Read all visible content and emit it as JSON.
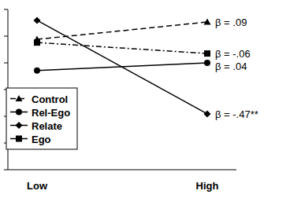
{
  "chart_data": {
    "type": "line",
    "categories": [
      "Low",
      "High"
    ],
    "series": [
      {
        "name": "Control",
        "color": "#000000",
        "marker": "triangle",
        "line_style": "dashed",
        "values": [
          4.88,
          5.53
        ]
      },
      {
        "name": "Rel-Ego",
        "color": "#000000",
        "marker": "circle",
        "line_style": "solid",
        "values": [
          3.71,
          4.0
        ]
      },
      {
        "name": "Relate",
        "color": "#000000",
        "marker": "diamond",
        "line_style": "solid",
        "values": [
          5.59,
          2.09
        ]
      },
      {
        "name": "Ego",
        "color": "#000000",
        "marker": "square",
        "line_style": "dashdot",
        "values": [
          4.76,
          4.35
        ]
      }
    ],
    "annotations": [
      "β = .09",
      "β = .04",
      "β = -.47**",
      "β = -.06"
    ],
    "ylim": [
      0,
      6
    ],
    "yticks": [
      0,
      1,
      2,
      3,
      4,
      5,
      6
    ],
    "tick_labels": "x",
    "grid": false,
    "legend": "lower left"
  }
}
